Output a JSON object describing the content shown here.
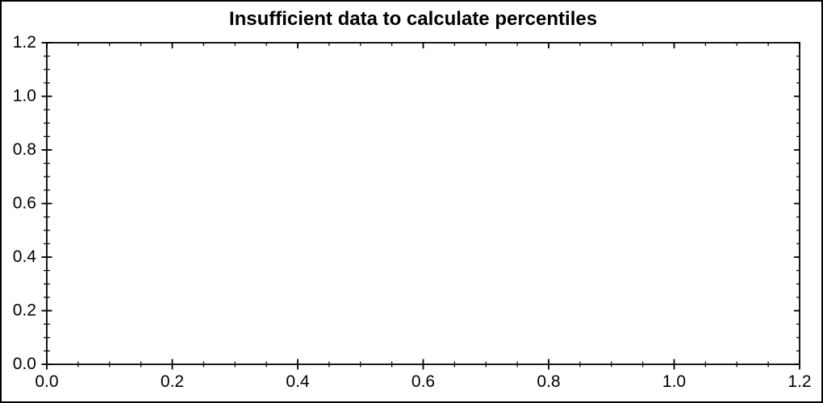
{
  "window": {
    "background": "#ffffff",
    "border_color": "#000000"
  },
  "chart_data": {
    "type": "scatter",
    "title": "Insufficient data to calculate percentiles",
    "series": [],
    "xlabel": "",
    "ylabel": "",
    "xlim": [
      0.0,
      1.2
    ],
    "ylim": [
      0.0,
      1.2
    ],
    "x_ticks": [
      0.0,
      0.2,
      0.4,
      0.6,
      0.8,
      1.0,
      1.2
    ],
    "y_ticks": [
      0.0,
      0.2,
      0.4,
      0.6,
      0.8,
      1.0,
      1.2
    ],
    "x_tick_labels": [
      "0.0",
      "0.2",
      "0.4",
      "0.6",
      "0.8",
      "1.0",
      "1.2"
    ],
    "y_tick_labels": [
      "0.0",
      "0.2",
      "0.4",
      "0.6",
      "0.8",
      "1.0",
      "1.2"
    ],
    "minor_tick_step": 0.05,
    "grid": false,
    "legend": "none",
    "axis_color": "#000000",
    "text_color": "#000000",
    "plot_background": "#ffffff"
  }
}
